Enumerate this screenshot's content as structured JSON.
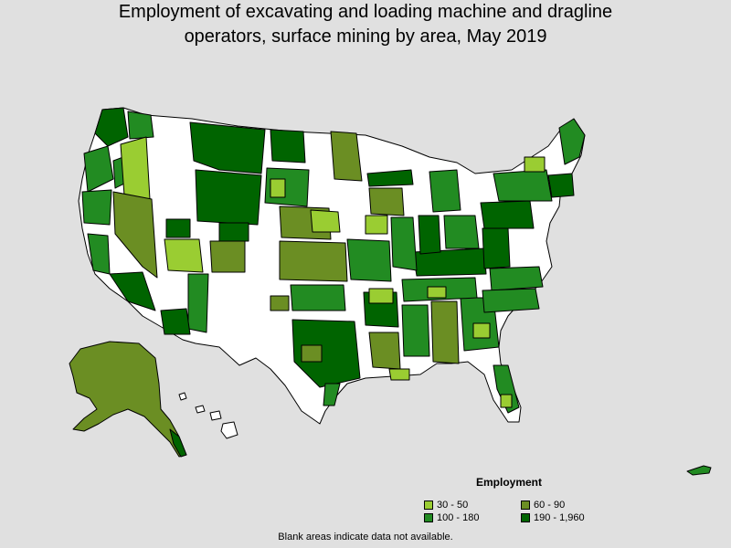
{
  "title_line1": "Employment of excavating and loading machine and dragline",
  "title_line2": "operators, surface mining by area, May 2019",
  "legend": {
    "title": "Employment",
    "items": [
      {
        "label": "30 - 50",
        "color": "#9acd32"
      },
      {
        "label": "60 - 90",
        "color": "#6b8e23"
      },
      {
        "label": "100 - 180",
        "color": "#228b22"
      },
      {
        "label": "190 - 1,960",
        "color": "#006400"
      }
    ]
  },
  "footnote": "Blank areas indicate data not available.",
  "colors": {
    "background": "#e0e0e0",
    "blank_area": "#ffffff",
    "border": "#000000"
  }
}
